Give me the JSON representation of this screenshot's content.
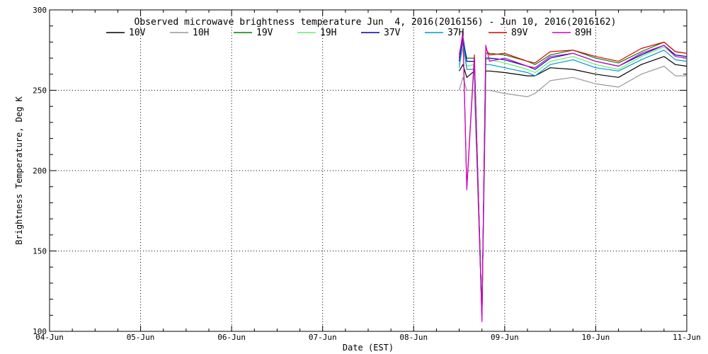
{
  "chart_data": {
    "type": "line",
    "title": "Observed microwave brightness temperature Jun  4, 2016(2016156) - Jun 10, 2016(2016162)",
    "xlabel": "Date (EST)",
    "ylabel": "Brightness Temperature, Deg K",
    "xlim": [
      "2016-06-04T00:00",
      "2016-06-11T00:00"
    ],
    "ylim": [
      100,
      300
    ],
    "x_ticks": [
      "04-Jun",
      "05-Jun",
      "06-Jun",
      "07-Jun",
      "08-Jun",
      "09-Jun",
      "10-Jun",
      "11-Jun"
    ],
    "y_ticks": [
      "100",
      "150",
      "200",
      "250",
      "300"
    ],
    "y_tick_values": [
      100,
      150,
      200,
      250,
      300
    ],
    "grid": "dotted at major ticks",
    "legend_position": "top",
    "x": [
      "2016-06-08T12:00",
      "2016-06-08T13:00",
      "2016-06-08T14:00",
      "2016-06-08T16:00",
      "2016-06-08T18:00",
      "2016-06-08T19:00",
      "2016-06-08T20:00",
      "2016-06-09T00:00",
      "2016-06-09T06:00",
      "2016-06-09T08:00",
      "2016-06-09T12:00",
      "2016-06-09T18:00",
      "2016-06-10T00:00",
      "2016-06-10T06:00",
      "2016-06-10T12:00",
      "2016-06-10T18:00",
      "2016-06-10T21:00",
      "2016-06-11T00:00"
    ],
    "series": [
      {
        "name": "10V",
        "color": "#000000",
        "values": [
          262,
          266,
          258,
          262,
          110,
          262,
          262,
          261,
          259,
          259,
          264,
          263,
          260,
          258,
          266,
          271,
          266,
          265
        ]
      },
      {
        "name": "10H",
        "color": "#999999",
        "values": [
          250,
          258,
          250,
          250,
          110,
          250,
          250,
          248,
          246,
          248,
          256,
          258,
          254,
          252,
          260,
          265,
          259,
          259
        ]
      },
      {
        "name": "19V",
        "color": "#008000",
        "values": [
          270,
          280,
          270,
          270,
          110,
          273,
          273,
          272,
          268,
          266,
          272,
          275,
          270,
          267,
          274,
          280,
          274,
          273
        ]
      },
      {
        "name": "19H",
        "color": "#66ee66",
        "values": [
          266,
          276,
          265,
          266,
          110,
          269,
          269,
          267,
          263,
          261,
          268,
          271,
          266,
          263,
          271,
          277,
          271,
          270
        ]
      },
      {
        "name": "37V",
        "color": "#0000aa",
        "values": [
          268,
          283,
          268,
          268,
          110,
          270,
          270,
          269,
          265,
          263,
          270,
          273,
          268,
          265,
          272,
          278,
          272,
          271
        ]
      },
      {
        "name": "37H",
        "color": "#0099cc",
        "values": [
          264,
          281,
          263,
          263,
          110,
          266,
          266,
          264,
          261,
          259,
          266,
          269,
          264,
          262,
          269,
          275,
          269,
          268
        ]
      },
      {
        "name": "89V",
        "color": "#dd0000",
        "values": [
          272,
          285,
          189,
          272,
          107,
          276,
          272,
          273,
          268,
          267,
          274,
          275,
          271,
          268,
          276,
          280,
          274,
          273
        ]
      },
      {
        "name": "89H",
        "color": "#cc00cc",
        "values": [
          270,
          287,
          188,
          270,
          106,
          278,
          268,
          270,
          265,
          264,
          271,
          273,
          268,
          265,
          273,
          278,
          271,
          270
        ]
      }
    ]
  }
}
